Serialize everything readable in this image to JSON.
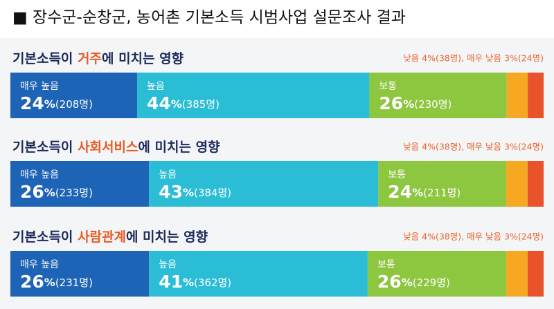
{
  "header": {
    "title": "■ 장수군-순창군, 농어촌 기본소득 시범사업 설문조사 결과"
  },
  "chart_data": [
    {
      "type": "stacked-bar",
      "title_parts": [
        "기본소득이 ",
        "거주",
        "에 미치는 영향"
      ],
      "note": "낮음 4%(38명), 매우 낮음 3%(24명)",
      "xlim": [
        0,
        101
      ],
      "series": [
        {
          "name": "매우 높음",
          "color": "#1d63b6",
          "values": [
            24
          ],
          "value_labels": [
            "24%(208명)"
          ]
        },
        {
          "name": "높음",
          "color": "#2bbdd6",
          "values": [
            44
          ],
          "value_labels": [
            "44%(385명)"
          ]
        },
        {
          "name": "보통",
          "color": "#8dc63f",
          "values": [
            26
          ],
          "value_labels": [
            "26%(230명)"
          ]
        },
        {
          "color": "#f7a823",
          "values": [
            4
          ]
        },
        {
          "color": "#e8532b",
          "values": [
            3
          ]
        }
      ]
    },
    {
      "type": "stacked-bar",
      "title_parts": [
        "기본소득이 ",
        "사회서비스",
        "에 미치는 영향"
      ],
      "note": "낮음 4%(38명), 매우 낮음 3%(24명)",
      "xlim": [
        0,
        100
      ],
      "series": [
        {
          "name": "매우 높음",
          "color": "#1d63b6",
          "values": [
            26
          ],
          "value_labels": [
            "26%(233명)"
          ]
        },
        {
          "name": "높음",
          "color": "#2bbdd6",
          "values": [
            43
          ],
          "value_labels": [
            "43%(384명)"
          ]
        },
        {
          "name": "보통",
          "color": "#8dc63f",
          "values": [
            24
          ],
          "value_labels": [
            "24%(211명)"
          ]
        },
        {
          "color": "#f7a823",
          "values": [
            4
          ]
        },
        {
          "color": "#e8532b",
          "values": [
            3
          ]
        }
      ]
    },
    {
      "type": "stacked-bar",
      "title_parts": [
        "기본소득이 ",
        "사람관계",
        "에 미치는 영향"
      ],
      "note": "낮음 4%(38명), 매우 낮음 3%(24명)",
      "xlim": [
        0,
        100
      ],
      "series": [
        {
          "name": "매우 높음",
          "color": "#1d63b6",
          "values": [
            26
          ],
          "value_labels": [
            "26%(231명)"
          ]
        },
        {
          "name": "높음",
          "color": "#2bbdd6",
          "values": [
            41
          ],
          "value_labels": [
            "41%(362명)"
          ]
        },
        {
          "name": "보통",
          "color": "#8dc63f",
          "values": [
            26
          ],
          "value_labels": [
            "26%(229명)"
          ]
        },
        {
          "color": "#f7a823",
          "values": [
            4
          ]
        },
        {
          "color": "#e8532b",
          "values": [
            3
          ]
        }
      ]
    }
  ]
}
